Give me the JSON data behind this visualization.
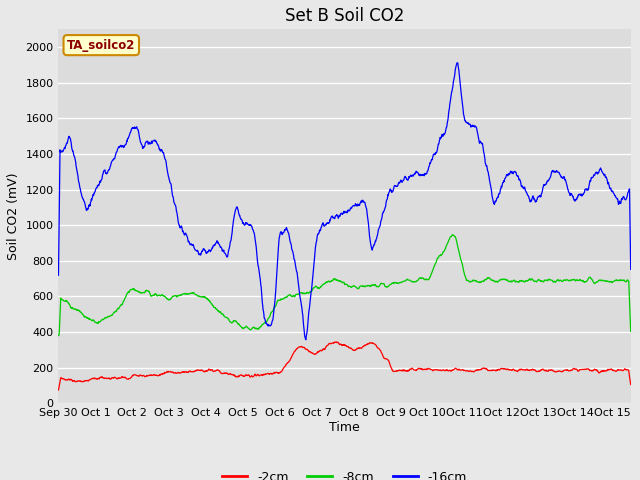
{
  "title": "Set B Soil CO2",
  "ylabel": "Soil CO2 (mV)",
  "xlabel": "Time",
  "ylim": [
    0,
    2100
  ],
  "yticks": [
    0,
    200,
    400,
    600,
    800,
    1000,
    1200,
    1400,
    1600,
    1800,
    2000
  ],
  "xtick_labels": [
    "Sep 30",
    "Oct 1",
    "Oct 2",
    "Oct 3",
    "Oct 4",
    "Oct 5",
    "Oct 6",
    "Oct 7",
    "Oct 8",
    "Oct 9",
    "Oct 10",
    "Oct 11",
    "Oct 12",
    "Oct 13",
    "Oct 14",
    "Oct 15"
  ],
  "legend_labels": [
    "-2cm",
    "-8cm",
    "-16cm"
  ],
  "line_colors": [
    "#ff0000",
    "#00cc00",
    "#0000ff"
  ],
  "annotation_text": "TA_soilco2",
  "annotation_bg": "#ffffcc",
  "annotation_border": "#cc8800",
  "fig_bg": "#e8e8e8",
  "plot_bg": "#dcdcdc",
  "grid_color": "#ffffff",
  "title_fontsize": 12,
  "axis_fontsize": 9,
  "tick_fontsize": 8
}
